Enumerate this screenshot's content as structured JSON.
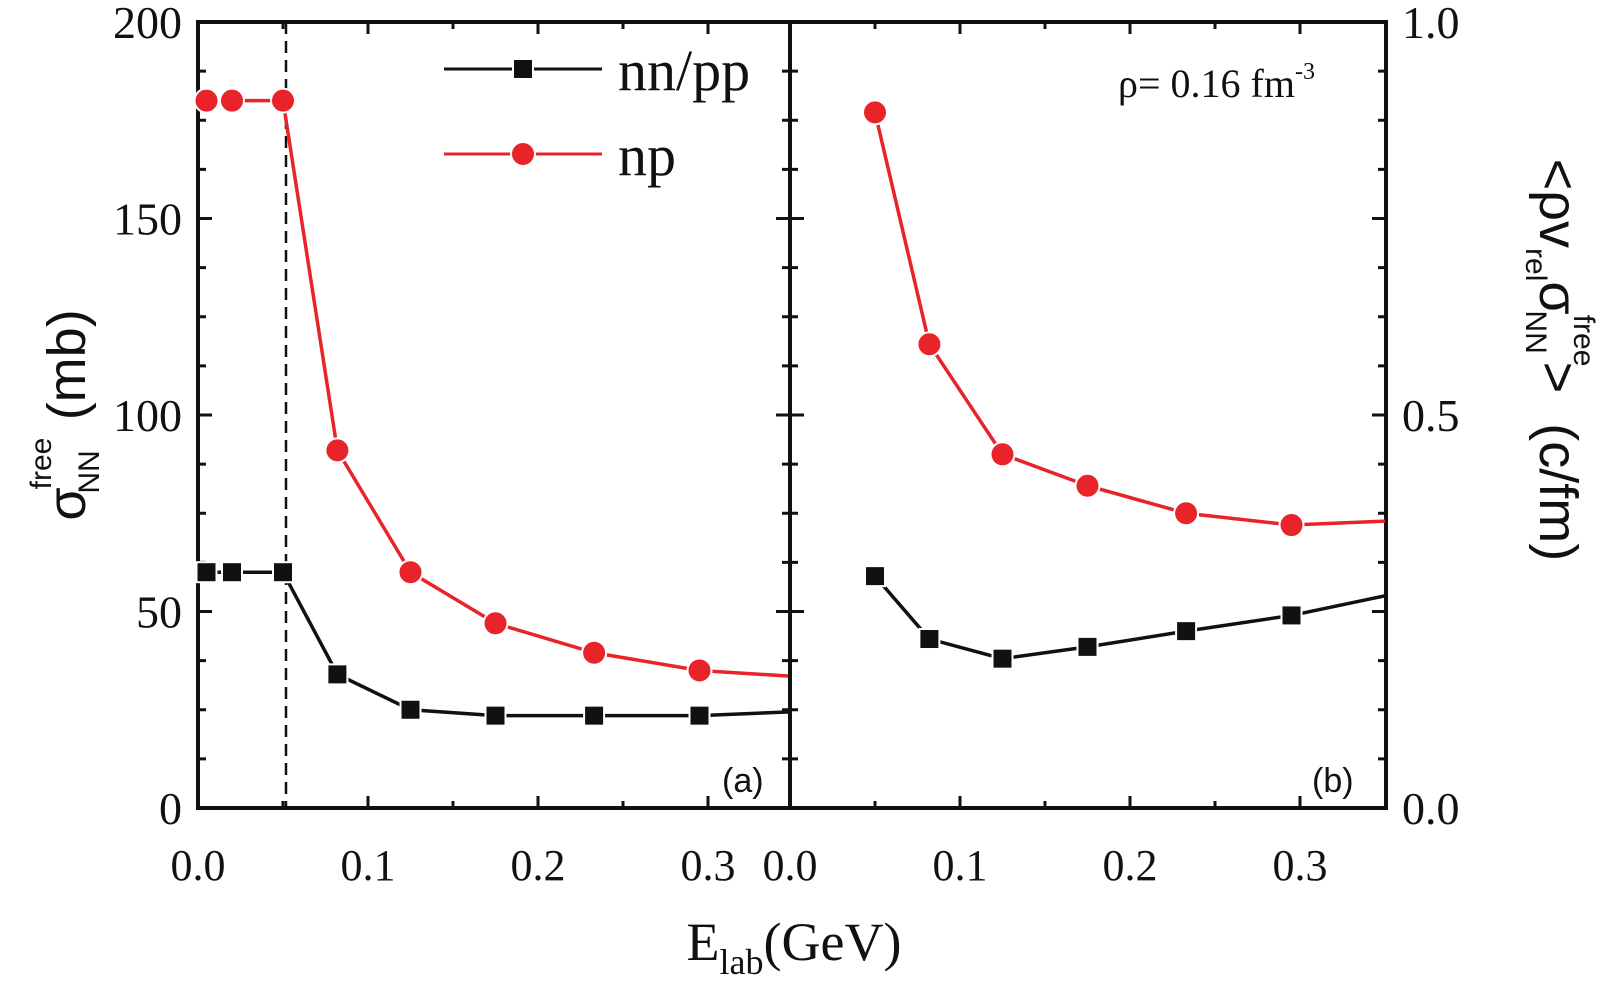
{
  "chart_data": [
    {
      "panel": "a",
      "type": "line",
      "panel_label": "(a)",
      "xlabel_main": "E",
      "xlabel_sub": "lab",
      "xlabel_unit": "(GeV)",
      "ylabel_symbol": "σ",
      "ylabel_sup": "free",
      "ylabel_sub": "NN",
      "ylabel_unit": "(mb)",
      "xlim": [
        0.0,
        0.35
      ],
      "ylim": [
        0,
        200
      ],
      "xticks": [
        "0.0",
        "0.1",
        "0.2",
        "0.3"
      ],
      "yticks": [
        "0",
        "50",
        "100",
        "150",
        "200"
      ],
      "vertical_dashed_line_x": 0.05,
      "legend": {
        "position": "top-center",
        "entries": [
          "nn/pp",
          "np"
        ]
      },
      "series": [
        {
          "name": "nn/pp",
          "color": "#111111",
          "marker": "square",
          "x": [
            0.005,
            0.02,
            0.05,
            0.082,
            0.125,
            0.175,
            0.233,
            0.295,
            0.35
          ],
          "y": [
            60,
            60,
            60,
            34,
            25,
            23.5,
            23.5,
            23.5,
            24.5
          ],
          "markers_on": [
            true,
            true,
            true,
            true,
            true,
            true,
            true,
            true,
            false
          ]
        },
        {
          "name": "np",
          "color": "#e8232a",
          "marker": "circle",
          "x": [
            0.005,
            0.02,
            0.05,
            0.082,
            0.125,
            0.175,
            0.233,
            0.295,
            0.35
          ],
          "y": [
            180,
            180,
            180,
            91,
            60,
            47,
            39.5,
            35,
            33.5
          ],
          "markers_on": [
            true,
            true,
            true,
            true,
            true,
            true,
            true,
            true,
            false
          ]
        }
      ]
    },
    {
      "panel": "b",
      "type": "line",
      "panel_label": "(b)",
      "annotation": {
        "prefix": "ρ= 0.16 fm",
        "sup": "-3"
      },
      "ylabel_left": "<ρv",
      "ylabel_sub1": "rel",
      "ylabel_symbol": "σ",
      "ylabel_sup": "free",
      "ylabel_sub2": "NN",
      "ylabel_right": ">",
      "ylabel_unit": "(c/fm)",
      "xlim": [
        0.0,
        0.35
      ],
      "ylim": [
        0.0,
        1.0
      ],
      "xticks": [
        "0.0",
        "0.1",
        "0.2",
        "0.3"
      ],
      "yticks": [
        "0.0",
        "0.5",
        "1.0"
      ],
      "series": [
        {
          "name": "nn/pp",
          "color": "#111111",
          "marker": "square",
          "x": [
            0.05,
            0.082,
            0.125,
            0.175,
            0.233,
            0.295,
            0.35
          ],
          "y": [
            0.295,
            0.215,
            0.19,
            0.205,
            0.225,
            0.245,
            0.27
          ],
          "markers_on": [
            true,
            true,
            true,
            true,
            true,
            true,
            false
          ]
        },
        {
          "name": "np",
          "color": "#e8232a",
          "marker": "circle",
          "x": [
            0.05,
            0.082,
            0.125,
            0.175,
            0.233,
            0.295,
            0.35
          ],
          "y": [
            0.885,
            0.59,
            0.45,
            0.41,
            0.375,
            0.36,
            0.365
          ],
          "markers_on": [
            true,
            true,
            true,
            true,
            true,
            true,
            false
          ]
        }
      ]
    }
  ]
}
